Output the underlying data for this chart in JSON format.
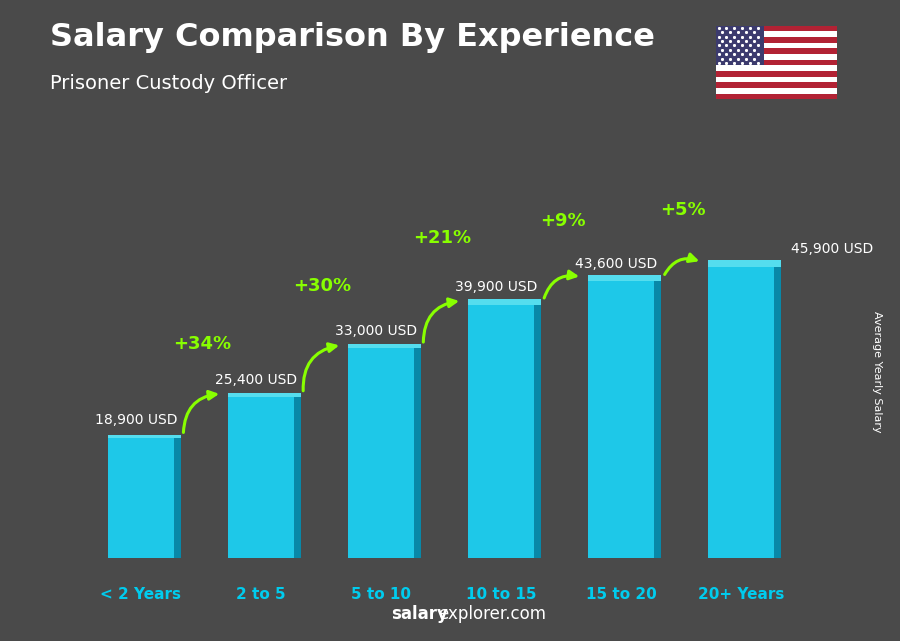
{
  "title": "Salary Comparison By Experience",
  "subtitle": "Prisoner Custody Officer",
  "categories": [
    "< 2 Years",
    "2 to 5",
    "5 to 10",
    "10 to 15",
    "15 to 20",
    "20+ Years"
  ],
  "values": [
    18900,
    25400,
    33000,
    39900,
    43600,
    45900
  ],
  "labels": [
    "18,900 USD",
    "25,400 USD",
    "33,000 USD",
    "39,900 USD",
    "43,600 USD",
    "45,900 USD"
  ],
  "pct_changes": [
    "+34%",
    "+30%",
    "+21%",
    "+9%",
    "+5%"
  ],
  "bar_color_main": "#1EC8E8",
  "bar_color_dark": "#0888A8",
  "bar_color_top": "#55DDEE",
  "bg_color": "#4a4a4a",
  "title_color": "#FFFFFF",
  "subtitle_color": "#FFFFFF",
  "label_color": "#FFFFFF",
  "pct_color": "#88FF00",
  "xticklabel_color": "#00CCEE",
  "ylabel": "Average Yearly Salary",
  "footer_bold": "salary",
  "footer_rest": "explorer.com",
  "ylim_max": 58000,
  "bar_bottom": 0
}
